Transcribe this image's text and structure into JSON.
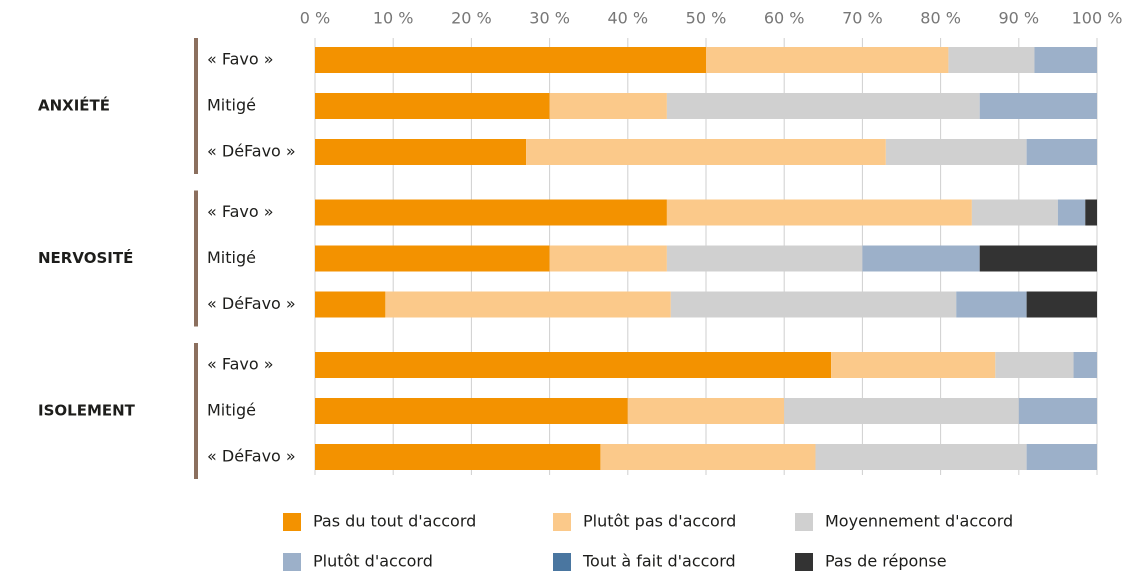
{
  "chart_data": {
    "type": "stacked-barh",
    "groups": [
      "ANXIÉTÉ",
      "NERVOSITÉ",
      "ISOLEMENT"
    ],
    "categories": [
      "« Favo »",
      "Mitigé",
      "« DéFavo »",
      "« Favo »",
      "Mitigé",
      "« DéFavo »",
      "« Favo »",
      "Mitigé",
      "« DéFavo »"
    ],
    "xlim": [
      0,
      100
    ],
    "xticks": [
      {
        "value": 0,
        "label": "0 %"
      },
      {
        "value": 10,
        "label": "10 %"
      },
      {
        "value": 20,
        "label": "20 %"
      },
      {
        "value": 30,
        "label": "30 %"
      },
      {
        "value": 40,
        "label": "40 %"
      },
      {
        "value": 50,
        "label": "50 %"
      },
      {
        "value": 60,
        "label": "60 %"
      },
      {
        "value": 70,
        "label": "70 %"
      },
      {
        "value": 80,
        "label": "80 %"
      },
      {
        "value": 90,
        "label": "90 %"
      },
      {
        "value": 100,
        "label": "100 %"
      }
    ],
    "grid": true,
    "series": [
      {
        "name": "Pas du tout d'accord",
        "color": "#f39200",
        "values": [
          50,
          30,
          27,
          45,
          30,
          9,
          66,
          40,
          36.5
        ]
      },
      {
        "name": "Plutôt pas d'accord",
        "color": "#fbc98a",
        "values": [
          31,
          15,
          46,
          39,
          15,
          36.5,
          21,
          20,
          27.5
        ]
      },
      {
        "name": "Moyennement d'accord",
        "color": "#d0d0d0",
        "values": [
          11,
          40,
          18,
          11,
          25,
          36.5,
          10,
          30,
          27
        ]
      },
      {
        "name": "Plutôt d'accord",
        "color": "#9cb0c9",
        "values": [
          8,
          15,
          9,
          3.5,
          15,
          9,
          3,
          10,
          9
        ]
      },
      {
        "name": "Tout à fait d'accord",
        "color": "#4a76a0",
        "values": [
          0,
          0,
          0,
          0,
          0,
          0,
          0,
          0,
          0
        ]
      },
      {
        "name": "Pas de réponse",
        "color": "#333333",
        "values": [
          0,
          0,
          0,
          1.5,
          15,
          9,
          0,
          0,
          0
        ]
      }
    ]
  }
}
